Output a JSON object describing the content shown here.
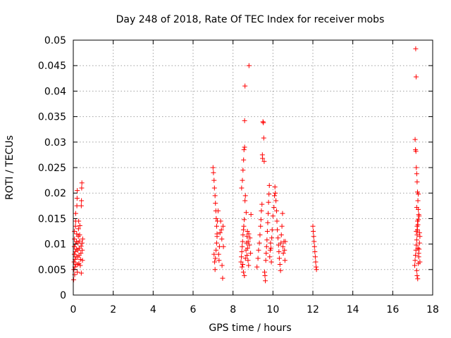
{
  "chart_data": {
    "type": "scatter",
    "title": "Day 248 of 2018, Rate Of TEC Index for receiver mobs",
    "xlabel": "GPS time / hours",
    "ylabel": "ROTI / TECUs",
    "xlim": [
      0,
      18
    ],
    "ylim": [
      0,
      0.05
    ],
    "grid": true,
    "marker": "+",
    "marker_color": "#ff0000",
    "xticks": [
      {
        "value": 0,
        "label": "0"
      },
      {
        "value": 2,
        "label": "2"
      },
      {
        "value": 4,
        "label": "4"
      },
      {
        "value": 6,
        "label": "6"
      },
      {
        "value": 8,
        "label": "8"
      },
      {
        "value": 10,
        "label": "10"
      },
      {
        "value": 12,
        "label": "12"
      },
      {
        "value": 14,
        "label": "14"
      },
      {
        "value": 16,
        "label": "16"
      },
      {
        "value": 18,
        "label": "18"
      }
    ],
    "yticks": [
      {
        "value": 0,
        "label": "0"
      },
      {
        "value": 0.005,
        "label": "0.005"
      },
      {
        "value": 0.01,
        "label": "0.01"
      },
      {
        "value": 0.015,
        "label": "0.015"
      },
      {
        "value": 0.02,
        "label": "0.02"
      },
      {
        "value": 0.025,
        "label": "0.025"
      },
      {
        "value": 0.03,
        "label": "0.03"
      },
      {
        "value": 0.035,
        "label": "0.035"
      },
      {
        "value": 0.04,
        "label": "0.04"
      },
      {
        "value": 0.045,
        "label": "0.045"
      },
      {
        "value": 0.05,
        "label": "0.05"
      }
    ],
    "series": [
      {
        "name": "ROTI",
        "points": [
          [
            0.02,
            0.003
          ],
          [
            0.03,
            0.005
          ],
          [
            0.04,
            0.0065
          ],
          [
            0.05,
            0.008
          ],
          [
            0.05,
            0.0095
          ],
          [
            0.06,
            0.011
          ],
          [
            0.06,
            0.0125
          ],
          [
            0.07,
            0.004
          ],
          [
            0.08,
            0.0055
          ],
          [
            0.09,
            0.007
          ],
          [
            0.1,
            0.0085
          ],
          [
            0.1,
            0.01
          ],
          [
            0.11,
            0.0135
          ],
          [
            0.12,
            0.0145
          ],
          [
            0.12,
            0.016
          ],
          [
            0.13,
            0.006
          ],
          [
            0.14,
            0.0075
          ],
          [
            0.15,
            0.009
          ],
          [
            0.16,
            0.0105
          ],
          [
            0.17,
            0.012
          ],
          [
            0.18,
            0.0175
          ],
          [
            0.19,
            0.019
          ],
          [
            0.2,
            0.0205
          ],
          [
            0.2,
            0.0045
          ],
          [
            0.21,
            0.006
          ],
          [
            0.22,
            0.0075
          ],
          [
            0.23,
            0.0088
          ],
          [
            0.24,
            0.0102
          ],
          [
            0.25,
            0.0115
          ],
          [
            0.26,
            0.013
          ],
          [
            0.27,
            0.0145
          ],
          [
            0.28,
            0.0062
          ],
          [
            0.29,
            0.0078
          ],
          [
            0.3,
            0.0092
          ],
          [
            0.31,
            0.0106
          ],
          [
            0.32,
            0.0118
          ],
          [
            0.33,
            0.0136
          ],
          [
            0.35,
            0.0058
          ],
          [
            0.36,
            0.007
          ],
          [
            0.38,
            0.0082
          ],
          [
            0.39,
            0.0096
          ],
          [
            0.4,
            0.0043
          ],
          [
            0.4,
            0.0175
          ],
          [
            0.41,
            0.0185
          ],
          [
            0.42,
            0.021
          ],
          [
            0.43,
            0.022
          ],
          [
            0.44,
            0.0102
          ],
          [
            0.45,
            0.0088
          ],
          [
            0.46,
            0.0068
          ],
          [
            0.47,
            0.011
          ],
          [
            7.0,
            0.025
          ],
          [
            7.02,
            0.024
          ],
          [
            7.05,
            0.0225
          ],
          [
            7.07,
            0.021
          ],
          [
            7.1,
            0.0195
          ],
          [
            7.12,
            0.018
          ],
          [
            7.14,
            0.0165
          ],
          [
            7.16,
            0.015
          ],
          [
            7.18,
            0.0135
          ],
          [
            7.2,
            0.012
          ],
          [
            7.05,
            0.008
          ],
          [
            7.08,
            0.0065
          ],
          [
            7.1,
            0.005
          ],
          [
            7.12,
            0.0072
          ],
          [
            7.15,
            0.0088
          ],
          [
            7.18,
            0.0102
          ],
          [
            7.2,
            0.0115
          ],
          [
            7.22,
            0.0145
          ],
          [
            7.25,
            0.0165
          ],
          [
            7.28,
            0.008
          ],
          [
            7.3,
            0.0068
          ],
          [
            7.32,
            0.0095
          ],
          [
            7.35,
            0.0122
          ],
          [
            7.38,
            0.0145
          ],
          [
            7.42,
            0.0128
          ],
          [
            7.44,
            0.011
          ],
          [
            7.45,
            0.0058
          ],
          [
            7.48,
            0.0033
          ],
          [
            7.5,
            0.0135
          ],
          [
            7.52,
            0.0095
          ],
          [
            8.4,
            0.0065
          ],
          [
            8.42,
            0.0075
          ],
          [
            8.44,
            0.0085
          ],
          [
            8.46,
            0.0095
          ],
          [
            8.48,
            0.0105
          ],
          [
            8.5,
            0.0118
          ],
          [
            8.52,
            0.0128
          ],
          [
            8.54,
            0.0135
          ],
          [
            8.56,
            0.0148
          ],
          [
            8.58,
            0.0342
          ],
          [
            8.43,
            0.021
          ],
          [
            8.47,
            0.0225
          ],
          [
            8.5,
            0.0245
          ],
          [
            8.53,
            0.0265
          ],
          [
            8.55,
            0.0285
          ],
          [
            8.58,
            0.029
          ],
          [
            8.6,
            0.041
          ],
          [
            8.45,
            0.0055
          ],
          [
            8.49,
            0.006
          ],
          [
            8.52,
            0.0045
          ],
          [
            8.57,
            0.0038
          ],
          [
            8.62,
            0.0072
          ],
          [
            8.65,
            0.0088
          ],
          [
            8.68,
            0.0102
          ],
          [
            8.7,
            0.0115
          ],
          [
            8.72,
            0.0125
          ],
          [
            8.75,
            0.0068
          ],
          [
            8.78,
            0.0058
          ],
          [
            8.8,
            0.045
          ],
          [
            8.82,
            0.0098
          ],
          [
            8.85,
            0.0112
          ],
          [
            8.88,
            0.0082
          ],
          [
            8.9,
            0.0158
          ],
          [
            8.6,
            0.0185
          ],
          [
            8.62,
            0.0195
          ],
          [
            8.66,
            0.0162
          ],
          [
            8.7,
            0.0078
          ],
          [
            8.73,
            0.0092
          ],
          [
            8.76,
            0.0105
          ],
          [
            8.79,
            0.012
          ],
          [
            9.2,
            0.0055
          ],
          [
            9.25,
            0.0072
          ],
          [
            9.28,
            0.0088
          ],
          [
            9.32,
            0.0102
          ],
          [
            9.35,
            0.0118
          ],
          [
            9.38,
            0.0135
          ],
          [
            9.4,
            0.0148
          ],
          [
            9.42,
            0.0165
          ],
          [
            9.45,
            0.0178
          ],
          [
            9.47,
            0.0275
          ],
          [
            9.48,
            0.0268
          ],
          [
            9.5,
            0.034
          ],
          [
            9.52,
            0.0338
          ],
          [
            9.54,
            0.0308
          ],
          [
            9.56,
            0.0262
          ],
          [
            9.58,
            0.0045
          ],
          [
            9.6,
            0.0038
          ],
          [
            9.62,
            0.0028
          ],
          [
            9.64,
            0.0068
          ],
          [
            9.66,
            0.0082
          ],
          [
            9.68,
            0.0095
          ],
          [
            9.7,
            0.0108
          ],
          [
            9.72,
            0.0125
          ],
          [
            9.74,
            0.0142
          ],
          [
            9.76,
            0.016
          ],
          [
            9.78,
            0.0182
          ],
          [
            9.8,
            0.0198
          ],
          [
            9.82,
            0.0215
          ],
          [
            9.84,
            0.0075
          ],
          [
            9.86,
            0.0088
          ],
          [
            9.88,
            0.0102
          ],
          [
            9.9,
            0.0092
          ],
          [
            9.92,
            0.0065
          ],
          [
            9.94,
            0.0112
          ],
          [
            9.96,
            0.0128
          ],
          [
            10.0,
            0.0155
          ],
          [
            10.05,
            0.0172
          ],
          [
            10.08,
            0.0195
          ],
          [
            10.1,
            0.0212
          ],
          [
            10.12,
            0.02
          ],
          [
            10.15,
            0.0185
          ],
          [
            10.18,
            0.0165
          ],
          [
            10.2,
            0.0145
          ],
          [
            10.22,
            0.0128
          ],
          [
            10.25,
            0.0112
          ],
          [
            10.28,
            0.0098
          ],
          [
            10.3,
            0.0085
          ],
          [
            10.32,
            0.0072
          ],
          [
            10.35,
            0.006
          ],
          [
            10.38,
            0.0048
          ],
          [
            10.4,
            0.0102
          ],
          [
            10.42,
            0.0118
          ],
          [
            10.45,
            0.0135
          ],
          [
            10.48,
            0.016
          ],
          [
            10.5,
            0.0095
          ],
          [
            10.52,
            0.0082
          ],
          [
            10.55,
            0.0105
          ],
          [
            10.58,
            0.0088
          ],
          [
            10.6,
            0.0068
          ],
          [
            10.62,
            0.0105
          ],
          [
            12.0,
            0.0135
          ],
          [
            12.02,
            0.0125
          ],
          [
            12.04,
            0.0115
          ],
          [
            12.06,
            0.0105
          ],
          [
            12.08,
            0.0095
          ],
          [
            12.1,
            0.0085
          ],
          [
            12.12,
            0.0075
          ],
          [
            12.14,
            0.0065
          ],
          [
            12.16,
            0.0055
          ],
          [
            12.18,
            0.005
          ],
          [
            17.1,
            0.0058
          ],
          [
            17.12,
            0.0068
          ],
          [
            17.14,
            0.0078
          ],
          [
            17.16,
            0.0088
          ],
          [
            17.18,
            0.0098
          ],
          [
            17.2,
            0.0108
          ],
          [
            17.22,
            0.0118
          ],
          [
            17.24,
            0.0128
          ],
          [
            17.26,
            0.0138
          ],
          [
            17.28,
            0.0148
          ],
          [
            17.12,
            0.0305
          ],
          [
            17.14,
            0.0285
          ],
          [
            17.16,
            0.0282
          ],
          [
            17.18,
            0.025
          ],
          [
            17.2,
            0.0238
          ],
          [
            17.22,
            0.0222
          ],
          [
            17.24,
            0.0202
          ],
          [
            17.26,
            0.0185
          ],
          [
            17.28,
            0.0168
          ],
          [
            17.3,
            0.0158
          ],
          [
            17.15,
            0.0483
          ],
          [
            17.17,
            0.0428
          ],
          [
            17.2,
            0.0048
          ],
          [
            17.22,
            0.0038
          ],
          [
            17.25,
            0.0032
          ],
          [
            17.28,
            0.0062
          ],
          [
            17.3,
            0.0075
          ],
          [
            17.32,
            0.009
          ],
          [
            17.34,
            0.0102
          ],
          [
            17.36,
            0.0115
          ],
          [
            17.18,
            0.0125
          ],
          [
            17.22,
            0.0135
          ],
          [
            17.26,
            0.0092
          ],
          [
            17.3,
            0.0082
          ],
          [
            17.34,
            0.0122
          ],
          [
            17.24,
            0.0145
          ],
          [
            17.28,
            0.0198
          ],
          [
            17.32,
            0.0155
          ],
          [
            17.36,
            0.0065
          ],
          [
            17.2,
            0.0172
          ]
        ]
      }
    ]
  }
}
